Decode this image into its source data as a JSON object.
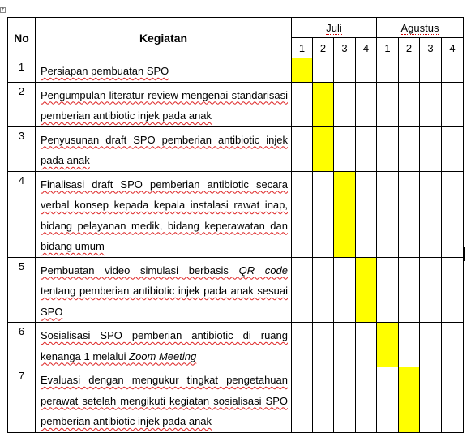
{
  "header": {
    "no": "No",
    "kegiatan": "Kegiatan",
    "months": [
      "Juli",
      "Agustus"
    ],
    "weeks": [
      "1",
      "2",
      "3",
      "4",
      "1",
      "2",
      "3",
      "4"
    ]
  },
  "rows": [
    {
      "no": "1",
      "text": "Persiapan pembuatan SPO",
      "active_week": 1
    },
    {
      "no": "2",
      "text": "Pengumpulan literatur review mengenai standarisasi pemberian antibiotic injek pada anak",
      "active_week": 2
    },
    {
      "no": "3",
      "text": "Penyusunan draft SPO pemberian antibiotic injek pada anak",
      "active_week": 2
    },
    {
      "no": "4",
      "text": "Finalisasi draft SPO pemberian antibiotic secara verbal konsep kepada kepala instalasi rawat inap, bidang pelayanan medik, bidang keperawatan dan bidang umum",
      "active_week": 3
    },
    {
      "no": "5",
      "text": "Pembuatan video simulasi berbasis QR code tentang pemberian antibiotic injek pada anak sesuai SPO",
      "active_week": 4
    },
    {
      "no": "6",
      "text": "Sosialisasi SPO pemberian antibiotic di ruang kenanga 1 melalui Zoom Meeting",
      "active_week": 5
    },
    {
      "no": "7",
      "text": "Evaluasi dengan mengukur tingkat pengetahuan perawat setelah mengikuti kegiatan sosialisasi SPO pemberian antibiotic injek pada anak",
      "active_week": 6
    }
  ],
  "colors": {
    "highlight": "#ffff00",
    "border": "#000000"
  }
}
